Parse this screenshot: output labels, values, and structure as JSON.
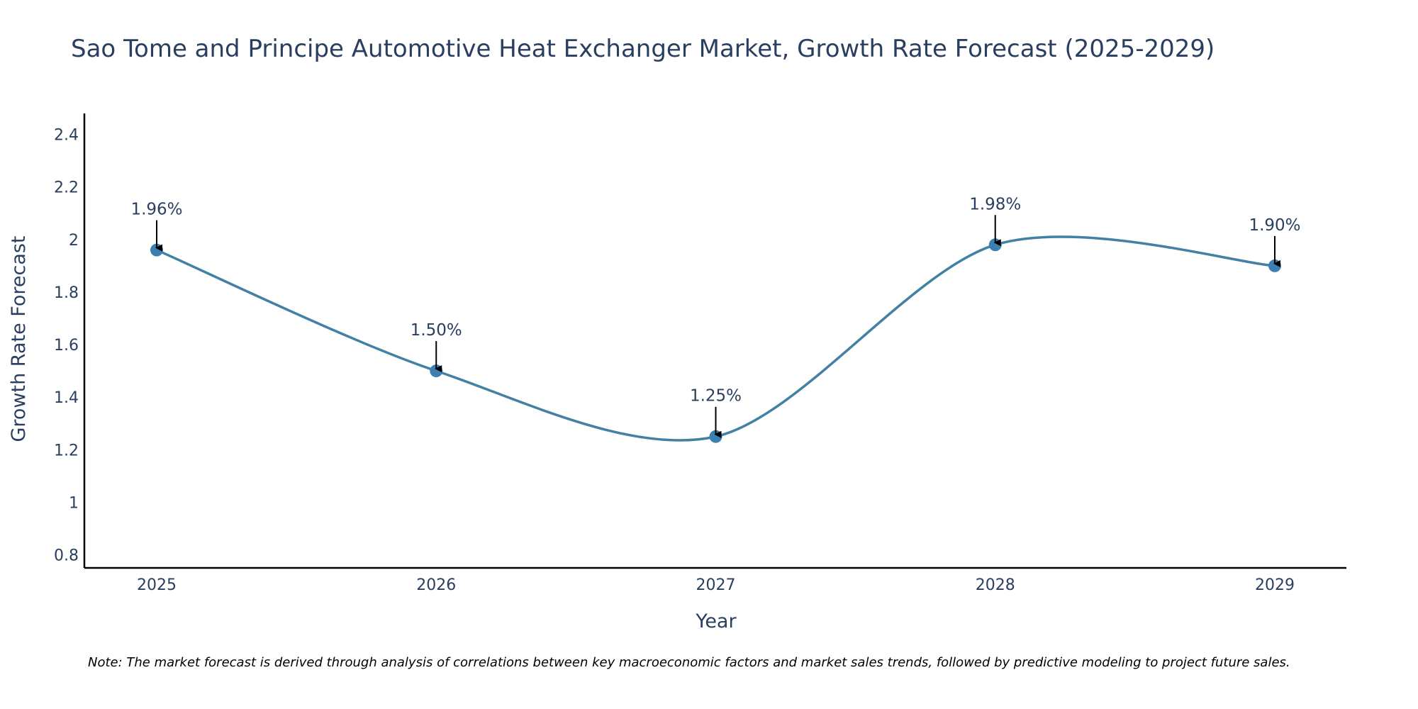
{
  "chart_data": {
    "type": "line",
    "title": "Sao Tome and Principe Automotive Heat Exchanger Market, Growth Rate Forecast (2025-2029)",
    "xlabel": "Year",
    "ylabel": "Growth Rate Forecast",
    "categories": [
      "2025",
      "2026",
      "2027",
      "2028",
      "2029"
    ],
    "series": [
      {
        "name": "Growth Rate Forecast",
        "values": [
          1.96,
          1.5,
          1.25,
          1.98,
          1.9
        ],
        "labels": [
          "1.96%",
          "1.50%",
          "1.25%",
          "1.98%",
          "1.90%"
        ]
      }
    ],
    "ylim": [
      0.75,
      2.48
    ],
    "yticks": [
      0.8,
      1,
      1.2,
      1.4,
      1.6,
      1.8,
      2,
      2.2,
      2.4
    ],
    "ytick_labels": [
      "0.8",
      "1",
      "1.2",
      "1.4",
      "1.6",
      "1.8",
      "2",
      "2.2",
      "2.4"
    ],
    "grid": false,
    "line_shape": "spline",
    "colors": {
      "line": "#4281a4",
      "marker": "#3d7fb0",
      "text": "#2a3f5f",
      "axis": "#000000",
      "arrow": "#000000"
    },
    "note": "Note: The market forecast is derived through analysis of correlations between key macroeconomic factors and market sales trends, followed by predictive modeling to project future sales."
  }
}
